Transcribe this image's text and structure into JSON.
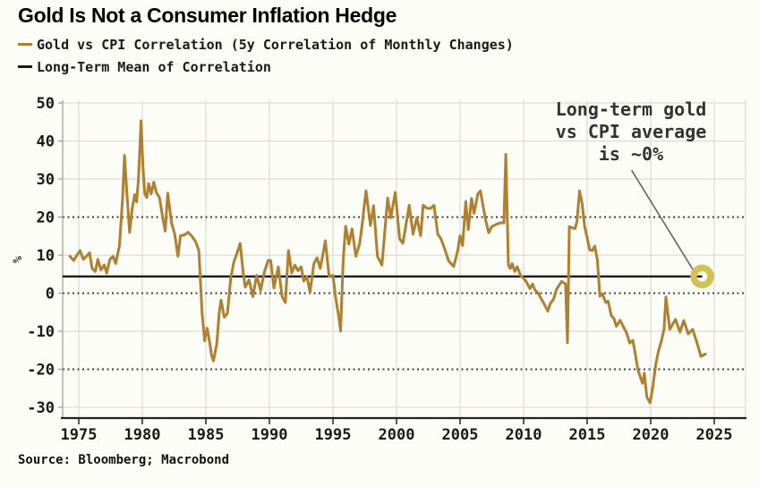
{
  "title": "Gold Is Not a Consumer Inflation Hedge",
  "legend": [
    {
      "label": "Gold vs CPI Correlation (5y Correlation of Monthly Changes)",
      "color": "#af802f"
    },
    {
      "label": "Long-Term Mean of Correlation",
      "color": "#1a1a1a"
    }
  ],
  "source": "Source: Bloomberg; Macrobond",
  "colors": {
    "series_gold": "#af802f",
    "mean_line": "#1a1a1a",
    "marker_ring": "#d2c154",
    "grid_light": "#dedbd2",
    "grid_dashed": "#3f3f3f",
    "axis_y": "#999999",
    "axis_x": "#222222",
    "pointer": "#666666",
    "background": "#fdfdf8",
    "tick_text": "#1a1a1a",
    "annotation_text": "#333333"
  },
  "chart_data": {
    "type": "line",
    "title": "Gold Is Not a Consumer Inflation Hedge",
    "xlabel": "",
    "ylabel": "%",
    "xlim": [
      1973.7,
      2027.5
    ],
    "ylim": [
      -33,
      51
    ],
    "grid": true,
    "legend_position": "top-left",
    "x_ticks": [
      1975,
      1980,
      1985,
      1990,
      1995,
      2000,
      2005,
      2010,
      2015,
      2020,
      2025
    ],
    "y_ticks": [
      50,
      40,
      30,
      20,
      10,
      0,
      -10,
      -20,
      -30
    ],
    "solid_gridlines_y": [
      50,
      40,
      30,
      10,
      -10,
      -30
    ],
    "dashed_gridlines_y": [
      20,
      0,
      -20
    ],
    "annotation": {
      "text": "Long-term gold\nvs CPI average\nis ~0%",
      "pointer_from": [
        2018.5,
        32.3
      ],
      "pointer_to": [
        2023.45,
        5.5
      ],
      "target": {
        "year": 2024.05,
        "value": 4.4
      }
    },
    "series": [
      {
        "name": "Gold vs CPI Correlation (5y Correlation of Monthly Changes)",
        "color": "#af802f",
        "points": [
          [
            1974.3,
            9.7
          ],
          [
            1974.6,
            8.6
          ],
          [
            1974.9,
            10.2
          ],
          [
            1975.1,
            11.2
          ],
          [
            1975.35,
            8.9
          ],
          [
            1975.6,
            9.7
          ],
          [
            1975.85,
            10.6
          ],
          [
            1976.05,
            6.5
          ],
          [
            1976.3,
            5.7
          ],
          [
            1976.5,
            8.9
          ],
          [
            1976.75,
            6.1
          ],
          [
            1977.0,
            7.4
          ],
          [
            1977.2,
            5.3
          ],
          [
            1977.45,
            8.9
          ],
          [
            1977.7,
            9.7
          ],
          [
            1977.9,
            7.8
          ],
          [
            1978.2,
            12.4
          ],
          [
            1978.45,
            25.0
          ],
          [
            1978.6,
            36.2
          ],
          [
            1978.75,
            28.0
          ],
          [
            1979.0,
            16.0
          ],
          [
            1979.2,
            22.0
          ],
          [
            1979.4,
            25.9
          ],
          [
            1979.55,
            24.0
          ],
          [
            1979.7,
            30.0
          ],
          [
            1979.9,
            45.3
          ],
          [
            1980.05,
            33.3
          ],
          [
            1980.2,
            26.1
          ],
          [
            1980.35,
            25.1
          ],
          [
            1980.5,
            28.8
          ],
          [
            1980.7,
            26.1
          ],
          [
            1980.9,
            29.2
          ],
          [
            1981.1,
            26.5
          ],
          [
            1981.35,
            25.1
          ],
          [
            1981.6,
            20.0
          ],
          [
            1981.8,
            16.3
          ],
          [
            1982.0,
            26.3
          ],
          [
            1982.3,
            18.4
          ],
          [
            1982.55,
            15.5
          ],
          [
            1982.8,
            9.7
          ],
          [
            1983.0,
            15.1
          ],
          [
            1983.3,
            15.3
          ],
          [
            1983.6,
            16.0
          ],
          [
            1983.9,
            15.0
          ],
          [
            1984.2,
            13.5
          ],
          [
            1984.45,
            11.2
          ],
          [
            1984.7,
            -5.0
          ],
          [
            1984.9,
            -12.5
          ],
          [
            1985.1,
            -9.2
          ],
          [
            1985.3,
            -13.0
          ],
          [
            1985.45,
            -16.3
          ],
          [
            1985.6,
            -17.8
          ],
          [
            1985.85,
            -13.5
          ],
          [
            1986.05,
            -5.3
          ],
          [
            1986.2,
            -1.8
          ],
          [
            1986.45,
            -6.3
          ],
          [
            1986.7,
            -5.3
          ],
          [
            1986.95,
            3.7
          ],
          [
            1987.2,
            8.2
          ],
          [
            1987.45,
            10.5
          ],
          [
            1987.7,
            13.1
          ],
          [
            1987.95,
            5.0
          ],
          [
            1988.1,
            1.6
          ],
          [
            1988.4,
            3.5
          ],
          [
            1988.7,
            -0.9
          ],
          [
            1989.0,
            4.7
          ],
          [
            1989.3,
            0.7
          ],
          [
            1989.6,
            5.5
          ],
          [
            1989.9,
            8.6
          ],
          [
            1990.1,
            8.6
          ],
          [
            1990.35,
            1.4
          ],
          [
            1990.7,
            6.9
          ],
          [
            1991.0,
            -0.9
          ],
          [
            1991.25,
            -2.5
          ],
          [
            1991.5,
            11.2
          ],
          [
            1991.75,
            5.3
          ],
          [
            1992.0,
            7.4
          ],
          [
            1992.25,
            5.9
          ],
          [
            1992.5,
            6.9
          ],
          [
            1992.7,
            3.2
          ],
          [
            1992.95,
            4.4
          ],
          [
            1993.2,
            0.2
          ],
          [
            1993.5,
            7.8
          ],
          [
            1993.75,
            9.3
          ],
          [
            1994.0,
            6.5
          ],
          [
            1994.2,
            10.0
          ],
          [
            1994.4,
            13.8
          ],
          [
            1994.7,
            4.4
          ],
          [
            1995.0,
            4.7
          ],
          [
            1995.2,
            -0.9
          ],
          [
            1995.45,
            -6.0
          ],
          [
            1995.6,
            -10.0
          ],
          [
            1995.8,
            8.6
          ],
          [
            1996.0,
            17.6
          ],
          [
            1996.25,
            12.9
          ],
          [
            1996.5,
            16.9
          ],
          [
            1996.8,
            9.7
          ],
          [
            1997.1,
            13.0
          ],
          [
            1997.3,
            18.2
          ],
          [
            1997.6,
            26.9
          ],
          [
            1997.95,
            17.8
          ],
          [
            1998.2,
            23.0
          ],
          [
            1998.5,
            9.7
          ],
          [
            1998.85,
            7.4
          ],
          [
            1999.3,
            25.0
          ],
          [
            1999.55,
            19.8
          ],
          [
            1999.9,
            26.5
          ],
          [
            2000.25,
            14.3
          ],
          [
            2000.5,
            13.1
          ],
          [
            2001.0,
            23.1
          ],
          [
            2001.3,
            15.5
          ],
          [
            2001.6,
            19.8
          ],
          [
            2001.9,
            15.1
          ],
          [
            2002.1,
            23.1
          ],
          [
            2002.4,
            22.3
          ],
          [
            2002.7,
            22.3
          ],
          [
            2002.95,
            23.1
          ],
          [
            2003.25,
            15.5
          ],
          [
            2003.5,
            14.3
          ],
          [
            2003.8,
            11.5
          ],
          [
            2004.1,
            8.5
          ],
          [
            2004.5,
            7.0
          ],
          [
            2004.8,
            11.0
          ],
          [
            2005.0,
            15.1
          ],
          [
            2005.2,
            12.5
          ],
          [
            2005.45,
            24.1
          ],
          [
            2005.65,
            16.7
          ],
          [
            2005.9,
            24.9
          ],
          [
            2006.1,
            21.0
          ],
          [
            2006.4,
            26.1
          ],
          [
            2006.6,
            26.9
          ],
          [
            2007.0,
            19.4
          ],
          [
            2007.25,
            15.9
          ],
          [
            2007.5,
            17.5
          ],
          [
            2007.9,
            18.2
          ],
          [
            2008.2,
            18.5
          ],
          [
            2008.45,
            18.5
          ],
          [
            2008.6,
            36.5
          ],
          [
            2008.8,
            7.4
          ],
          [
            2008.95,
            6.5
          ],
          [
            2009.1,
            7.8
          ],
          [
            2009.3,
            5.7
          ],
          [
            2009.5,
            7.0
          ],
          [
            2009.75,
            4.7
          ],
          [
            2010.0,
            3.9
          ],
          [
            2010.2,
            3.1
          ],
          [
            2010.5,
            1.2
          ],
          [
            2010.7,
            2.4
          ],
          [
            2010.9,
            0.8
          ],
          [
            2011.15,
            0.0
          ],
          [
            2011.4,
            -1.6
          ],
          [
            2011.6,
            -2.7
          ],
          [
            2011.9,
            -4.7
          ],
          [
            2012.1,
            -2.7
          ],
          [
            2012.35,
            -1.6
          ],
          [
            2012.6,
            1.1
          ],
          [
            2013.0,
            3.1
          ],
          [
            2013.3,
            2.4
          ],
          [
            2013.45,
            -13.0
          ],
          [
            2013.6,
            17.5
          ],
          [
            2013.8,
            17.2
          ],
          [
            2014.05,
            17.0
          ],
          [
            2014.2,
            18.8
          ],
          [
            2014.4,
            26.9
          ],
          [
            2014.6,
            23.7
          ],
          [
            2014.8,
            17.5
          ],
          [
            2015.0,
            14.6
          ],
          [
            2015.2,
            11.4
          ],
          [
            2015.4,
            11.2
          ],
          [
            2015.6,
            12.4
          ],
          [
            2015.8,
            8.8
          ],
          [
            2016.0,
            -0.8
          ],
          [
            2016.2,
            -0.1
          ],
          [
            2016.45,
            -2.4
          ],
          [
            2016.65,
            -2.1
          ],
          [
            2016.9,
            -5.9
          ],
          [
            2017.1,
            -6.6
          ],
          [
            2017.3,
            -8.7
          ],
          [
            2017.6,
            -7.1
          ],
          [
            2017.9,
            -9.2
          ],
          [
            2018.1,
            -10.4
          ],
          [
            2018.35,
            -13.1
          ],
          [
            2018.6,
            -12.4
          ],
          [
            2018.8,
            -16.3
          ],
          [
            2019.0,
            -20.2
          ],
          [
            2019.35,
            -23.7
          ],
          [
            2019.5,
            -21.0
          ],
          [
            2019.7,
            -27.3
          ],
          [
            2019.95,
            -28.8
          ],
          [
            2020.15,
            -25.0
          ],
          [
            2020.4,
            -18.7
          ],
          [
            2020.6,
            -15.4
          ],
          [
            2020.85,
            -12.4
          ],
          [
            2021.05,
            -9.5
          ],
          [
            2021.2,
            -1.0
          ],
          [
            2021.5,
            -9.5
          ],
          [
            2021.95,
            -6.9
          ],
          [
            2022.3,
            -10.2
          ],
          [
            2022.6,
            -7.2
          ],
          [
            2022.95,
            -10.7
          ],
          [
            2023.3,
            -9.5
          ],
          [
            2023.65,
            -13.1
          ],
          [
            2023.95,
            -16.6
          ],
          [
            2024.3,
            -16.0
          ]
        ]
      },
      {
        "name": "Long-Term Mean of Correlation",
        "color": "#1a1a1a",
        "value": 4.4,
        "x_range": [
          1973.73,
          2024.05
        ]
      }
    ]
  }
}
